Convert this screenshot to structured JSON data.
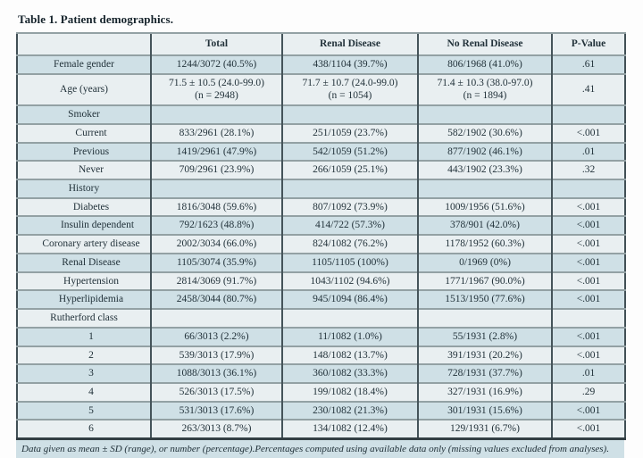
{
  "title": "Table 1. Patient demographics.",
  "table": {
    "columns": [
      "",
      "Total",
      "Renal Disease",
      "No Renal Disease",
      "P-Value"
    ],
    "rows": [
      {
        "label": "Female gender",
        "indent": 0,
        "cells": [
          "1244/3072 (40.5%)",
          "438/1104 (39.7%)",
          "806/1968 (41.0%)",
          ".61"
        ]
      },
      {
        "label": "Age (years)",
        "indent": 0,
        "cells": [
          "71.5 ± 10.5 (24.0-99.0)\n(n = 2948)",
          "71.7 ± 10.7 (24.0-99.0)\n(n = 1054)",
          "71.4 ± 10.3 (38.0-97.0)\n(n = 1894)",
          ".41"
        ]
      },
      {
        "label": "Smoker",
        "indent": 0,
        "cells": [
          "",
          "",
          "",
          ""
        ]
      },
      {
        "label": "Current",
        "indent": 1,
        "cells": [
          "833/2961 (28.1%)",
          "251/1059 (23.7%)",
          "582/1902 (30.6%)",
          "<.001"
        ]
      },
      {
        "label": "Previous",
        "indent": 1,
        "cells": [
          "1419/2961 (47.9%)",
          "542/1059 (51.2%)",
          "877/1902 (46.1%)",
          ".01"
        ]
      },
      {
        "label": "Never",
        "indent": 1,
        "cells": [
          "709/2961 (23.9%)",
          "266/1059 (25.1%)",
          "443/1902 (23.3%)",
          ".32"
        ]
      },
      {
        "label": "History",
        "indent": 0,
        "cells": [
          "",
          "",
          "",
          ""
        ]
      },
      {
        "label": "Diabetes",
        "indent": 1,
        "cells": [
          "1816/3048 (59.6%)",
          "807/1092 (73.9%)",
          "1009/1956 (51.6%)",
          "<.001"
        ]
      },
      {
        "label": "Insulin dependent",
        "indent": 2,
        "cells": [
          "792/1623 (48.8%)",
          "414/722 (57.3%)",
          "378/901 (42.0%)",
          "<.001"
        ]
      },
      {
        "label": "Coronary artery disease",
        "indent": 1,
        "cells": [
          "2002/3034 (66.0%)",
          "824/1082 (76.2%)",
          "1178/1952 (60.3%)",
          "<.001"
        ]
      },
      {
        "label": "Renal Disease",
        "indent": 1,
        "cells": [
          "1105/3074 (35.9%)",
          "1105/1105 (100%)",
          "0/1969 (0%)",
          "<.001"
        ]
      },
      {
        "label": "Hypertension",
        "indent": 1,
        "cells": [
          "2814/3069 (91.7%)",
          "1043/1102 (94.6%)",
          "1771/1967 (90.0%)",
          "<.001"
        ]
      },
      {
        "label": "Hyperlipidemia",
        "indent": 1,
        "cells": [
          "2458/3044 (80.7%)",
          "945/1094 (86.4%)",
          "1513/1950 (77.6%)",
          "<.001"
        ]
      },
      {
        "label": "Rutherford class",
        "indent": 0,
        "cells": [
          "",
          "",
          "",
          ""
        ]
      },
      {
        "label": "1",
        "indent": 1,
        "cells": [
          "66/3013 (2.2%)",
          "11/1082 (1.0%)",
          "55/1931 (2.8%)",
          "<.001"
        ]
      },
      {
        "label": "2",
        "indent": 1,
        "cells": [
          "539/3013 (17.9%)",
          "148/1082 (13.7%)",
          "391/1931 (20.2%)",
          "<.001"
        ]
      },
      {
        "label": "3",
        "indent": 1,
        "cells": [
          "1088/3013 (36.1%)",
          "360/1082 (33.3%)",
          "728/1931 (37.7%)",
          ".01"
        ]
      },
      {
        "label": "4",
        "indent": 1,
        "cells": [
          "526/3013 (17.5%)",
          "199/1082 (18.4%)",
          "327/1931 (16.9%)",
          ".29"
        ]
      },
      {
        "label": "5",
        "indent": 1,
        "cells": [
          "531/3013 (17.6%)",
          "230/1082 (21.3%)",
          "301/1931 (15.6%)",
          "<.001"
        ]
      },
      {
        "label": "6",
        "indent": 1,
        "cells": [
          "263/3013 (8.7%)",
          "134/1082 (12.4%)",
          "129/1931 (6.7%)",
          "<.001"
        ]
      }
    ]
  },
  "footnote": "Data given as mean ± SD (range), or number (percentage).Percentages computed using available data only (missing values excluded from analyses).",
  "colors": {
    "row_dark": "#cfe0e6",
    "row_light": "#e9eff1",
    "border_dark": "#45545a",
    "border_gray": "#93a1a4",
    "text": "#22323a"
  }
}
